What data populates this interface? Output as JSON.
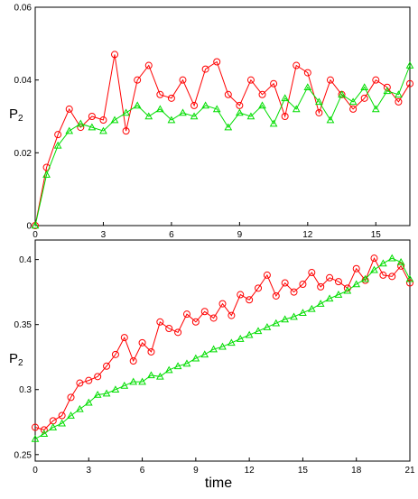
{
  "chart_data": [
    {
      "type": "line",
      "title": "",
      "xlabel": "",
      "ylabel": "P",
      "ylabel_subscript": "2",
      "xlim": [
        0,
        16.5
      ],
      "ylim": [
        0,
        0.06
      ],
      "xticks": [
        "0",
        "3",
        "6",
        "9",
        "12",
        "15"
      ],
      "yticks": [
        "0",
        "0.02",
        "0.04",
        "0.06"
      ],
      "grid": false,
      "series": [
        {
          "color": "#ff0000",
          "marker": "circle",
          "x": [
            0,
            0.5,
            1.0,
            1.5,
            2.0,
            2.5,
            3.0,
            3.5,
            4.0,
            4.5,
            5.0,
            5.5,
            6.0,
            6.5,
            7.0,
            7.5,
            8.0,
            8.5,
            9.0,
            9.5,
            10.0,
            10.5,
            11.0,
            11.5,
            12.0,
            12.5,
            13.0,
            13.5,
            14.0,
            14.5,
            15.0,
            15.5,
            16.0,
            16.5
          ],
          "y": [
            0.0,
            0.016,
            0.025,
            0.032,
            0.027,
            0.03,
            0.029,
            0.047,
            0.026,
            0.04,
            0.044,
            0.036,
            0.035,
            0.04,
            0.033,
            0.043,
            0.045,
            0.036,
            0.033,
            0.04,
            0.036,
            0.039,
            0.03,
            0.044,
            0.042,
            0.031,
            0.04,
            0.036,
            0.032,
            0.035,
            0.04,
            0.038,
            0.034,
            0.039
          ]
        },
        {
          "color": "#00dd00",
          "marker": "triangle",
          "x": [
            0,
            0.5,
            1.0,
            1.5,
            2.0,
            2.5,
            3.0,
            3.5,
            4.0,
            4.5,
            5.0,
            5.5,
            6.0,
            6.5,
            7.0,
            7.5,
            8.0,
            8.5,
            9.0,
            9.5,
            10.0,
            10.5,
            11.0,
            11.5,
            12.0,
            12.5,
            13.0,
            13.5,
            14.0,
            14.5,
            15.0,
            15.5,
            16.0,
            16.5
          ],
          "y": [
            0.0,
            0.014,
            0.022,
            0.026,
            0.028,
            0.027,
            0.026,
            0.029,
            0.031,
            0.033,
            0.03,
            0.032,
            0.029,
            0.031,
            0.03,
            0.033,
            0.032,
            0.027,
            0.031,
            0.03,
            0.033,
            0.028,
            0.035,
            0.032,
            0.038,
            0.034,
            0.029,
            0.036,
            0.034,
            0.038,
            0.032,
            0.037,
            0.036,
            0.044
          ]
        }
      ]
    },
    {
      "type": "line",
      "title": "",
      "xlabel": "time",
      "ylabel": "P",
      "ylabel_subscript": "2",
      "xlim": [
        0,
        21
      ],
      "ylim": [
        0.245,
        0.415
      ],
      "xticks": [
        "0",
        "3",
        "6",
        "9",
        "12",
        "15",
        "18",
        "21"
      ],
      "yticks": [
        "0.25",
        "0.3",
        "0.35",
        "0.4"
      ],
      "grid": false,
      "series": [
        {
          "color": "#ff0000",
          "marker": "circle",
          "x": [
            0,
            0.5,
            1.0,
            1.5,
            2.0,
            2.5,
            3.0,
            3.5,
            4.0,
            4.5,
            5.0,
            5.5,
            6.0,
            6.5,
            7.0,
            7.5,
            8.0,
            8.5,
            9.0,
            9.5,
            10.0,
            10.5,
            11.0,
            11.5,
            12.0,
            12.5,
            13.0,
            13.5,
            14.0,
            14.5,
            15.0,
            15.5,
            16.0,
            16.5,
            17.0,
            17.5,
            18.0,
            18.5,
            19.0,
            19.5,
            20.0,
            20.5,
            21.0
          ],
          "y": [
            0.271,
            0.269,
            0.276,
            0.28,
            0.294,
            0.305,
            0.307,
            0.31,
            0.318,
            0.327,
            0.34,
            0.322,
            0.336,
            0.329,
            0.352,
            0.347,
            0.344,
            0.358,
            0.352,
            0.36,
            0.355,
            0.366,
            0.357,
            0.373,
            0.369,
            0.378,
            0.388,
            0.372,
            0.382,
            0.375,
            0.381,
            0.39,
            0.379,
            0.386,
            0.383,
            0.378,
            0.393,
            0.384,
            0.401,
            0.388,
            0.387,
            0.395,
            0.382
          ]
        },
        {
          "color": "#00dd00",
          "marker": "triangle",
          "x": [
            0,
            0.5,
            1.0,
            1.5,
            2.0,
            2.5,
            3.0,
            3.5,
            4.0,
            4.5,
            5.0,
            5.5,
            6.0,
            6.5,
            7.0,
            7.5,
            8.0,
            8.5,
            9.0,
            9.5,
            10.0,
            10.5,
            11.0,
            11.5,
            12.0,
            12.5,
            13.0,
            13.5,
            14.0,
            14.5,
            15.0,
            15.5,
            16.0,
            16.5,
            17.0,
            17.5,
            18.0,
            18.5,
            19.0,
            19.5,
            20.0,
            20.5,
            21.0
          ],
          "y": [
            0.262,
            0.266,
            0.271,
            0.274,
            0.28,
            0.285,
            0.29,
            0.296,
            0.297,
            0.3,
            0.303,
            0.306,
            0.306,
            0.311,
            0.31,
            0.315,
            0.318,
            0.32,
            0.324,
            0.327,
            0.331,
            0.333,
            0.336,
            0.339,
            0.342,
            0.345,
            0.348,
            0.351,
            0.354,
            0.356,
            0.359,
            0.362,
            0.366,
            0.37,
            0.373,
            0.376,
            0.381,
            0.385,
            0.392,
            0.397,
            0.401,
            0.398,
            0.385
          ]
        }
      ]
    }
  ]
}
